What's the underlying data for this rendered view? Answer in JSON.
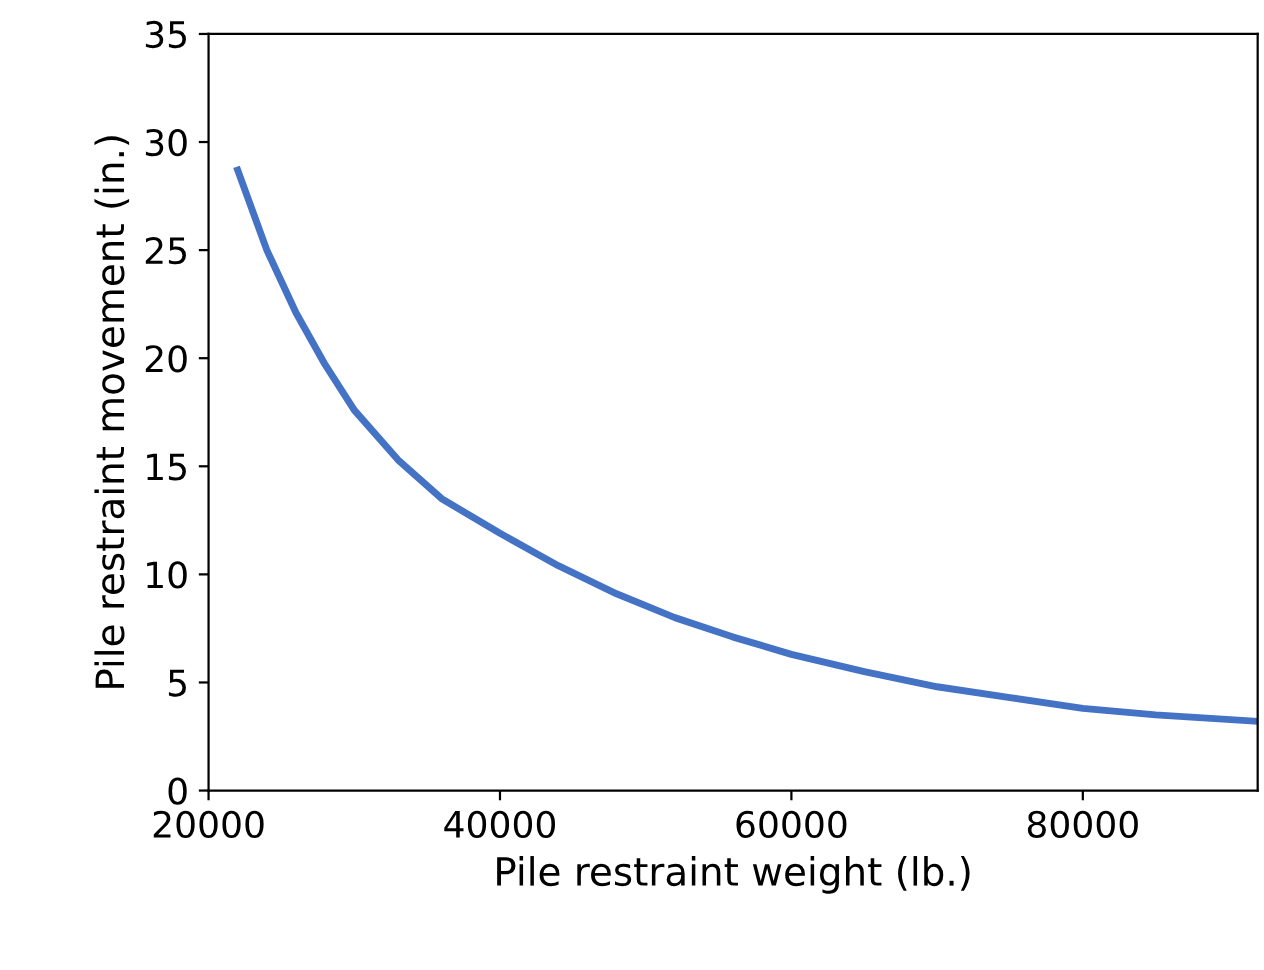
{
  "chart_data": {
    "type": "line",
    "xlabel": "Pile restraint weight (lb.)",
    "ylabel": "Pile restraint movement (in.)",
    "x": [
      22000,
      24000,
      26000,
      28000,
      30000,
      33000,
      36000,
      40000,
      44000,
      48000,
      52000,
      56000,
      60000,
      65000,
      70000,
      75000,
      80000,
      85000,
      92000
    ],
    "series": [
      {
        "color": "#4472c4",
        "values": [
          28.7,
          25.0,
          22.1,
          19.7,
          17.6,
          15.3,
          13.5,
          11.9,
          10.4,
          9.1,
          8.0,
          7.1,
          6.3,
          5.5,
          4.8,
          4.3,
          3.8,
          3.5,
          3.2
        ]
      }
    ],
    "xlim": [
      20000,
      92000
    ],
    "xticks": [
      20000,
      40000,
      60000,
      80000
    ],
    "ylim": [
      0,
      35
    ],
    "yticks": [
      0,
      5,
      10,
      15,
      20,
      25,
      30,
      35
    ],
    "grid": false,
    "legend": false,
    "marker": "none",
    "line_style": "solid"
  }
}
